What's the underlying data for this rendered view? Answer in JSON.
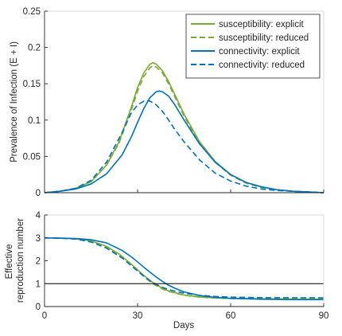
{
  "colors": {
    "susceptibility": "#77AC30",
    "connectivity": "#0072BD",
    "threshold": "#000000",
    "axis": "#262626",
    "box": "#d9d9d9"
  },
  "chart_data": [
    {
      "type": "line",
      "title": "",
      "xlabel": "",
      "ylabel": "Prevalence of Infection (E + I)",
      "xlim": [
        0,
        90
      ],
      "ylim": [
        0,
        0.25
      ],
      "xticks": [
        0,
        30,
        60,
        90
      ],
      "yticks": [
        "0",
        "0.05",
        "0.1",
        "0.15",
        "0.2",
        "0.25"
      ],
      "grid": false,
      "legend_position": "top-right",
      "series": [
        {
          "name": "susceptibility: explicit",
          "color": "#77AC30",
          "dash": "solid",
          "x": [
            0,
            5,
            10,
            15,
            20,
            24,
            28,
            30,
            32,
            34,
            35,
            36,
            38,
            40,
            42,
            45,
            50,
            55,
            60,
            65,
            70,
            75,
            80,
            85,
            90
          ],
          "y": [
            0,
            0.002,
            0.006,
            0.015,
            0.038,
            0.07,
            0.118,
            0.145,
            0.165,
            0.177,
            0.179,
            0.177,
            0.168,
            0.153,
            0.135,
            0.108,
            0.07,
            0.043,
            0.025,
            0.014,
            0.008,
            0.004,
            0.002,
            0.001,
            0
          ]
        },
        {
          "name": "susceptibility: reduced",
          "color": "#77AC30",
          "dash": "dashed",
          "x": [
            0,
            5,
            10,
            15,
            20,
            24,
            28,
            30,
            32,
            34,
            35,
            36,
            38,
            40,
            42,
            45,
            50,
            55,
            60,
            65,
            70,
            75,
            80,
            85,
            90
          ],
          "y": [
            0,
            0.002,
            0.006,
            0.015,
            0.038,
            0.068,
            0.114,
            0.14,
            0.16,
            0.172,
            0.175,
            0.173,
            0.165,
            0.15,
            0.132,
            0.105,
            0.068,
            0.042,
            0.024,
            0.013,
            0.007,
            0.004,
            0.002,
            0.001,
            0
          ]
        },
        {
          "name": "connectivity: explicit",
          "color": "#0072BD",
          "dash": "solid",
          "x": [
            0,
            5,
            10,
            15,
            20,
            25,
            28,
            30,
            32,
            34,
            36,
            37,
            38,
            40,
            42,
            45,
            50,
            55,
            60,
            65,
            70,
            75,
            80,
            85,
            90
          ],
          "y": [
            0,
            0.002,
            0.005,
            0.012,
            0.026,
            0.052,
            0.077,
            0.097,
            0.116,
            0.131,
            0.139,
            0.14,
            0.139,
            0.133,
            0.121,
            0.1,
            0.067,
            0.042,
            0.025,
            0.014,
            0.008,
            0.004,
            0.002,
            0.001,
            0
          ]
        },
        {
          "name": "connectivity: reduced",
          "color": "#0072BD",
          "dash": "dashed",
          "x": [
            0,
            5,
            10,
            15,
            20,
            25,
            28,
            30,
            32,
            33,
            34,
            36,
            38,
            40,
            42,
            45,
            50,
            55,
            60,
            65,
            70,
            75,
            80,
            85,
            90
          ],
          "y": [
            0,
            0.002,
            0.006,
            0.017,
            0.042,
            0.083,
            0.11,
            0.121,
            0.126,
            0.127,
            0.126,
            0.121,
            0.112,
            0.1,
            0.087,
            0.07,
            0.045,
            0.027,
            0.016,
            0.009,
            0.005,
            0.003,
            0.002,
            0.001,
            0
          ]
        }
      ]
    },
    {
      "type": "line",
      "title": "",
      "xlabel": "Days",
      "ylabel": "Effective reproduction number",
      "ylabel_lines": [
        "Effective",
        "reproduction number"
      ],
      "xlim": [
        0,
        90
      ],
      "ylim": [
        0,
        4
      ],
      "xticks": [
        0,
        30,
        60,
        90
      ],
      "yticks": [
        0,
        1,
        2,
        3,
        4
      ],
      "grid": false,
      "reference_line": {
        "y": 1,
        "color": "#000000"
      },
      "series": [
        {
          "color": "#77AC30",
          "dash": "solid",
          "x": [
            0,
            5,
            10,
            15,
            20,
            24,
            28,
            30,
            32,
            34,
            36,
            38,
            40,
            45,
            50,
            55,
            60,
            70,
            80,
            90
          ],
          "y": [
            3.0,
            2.99,
            2.96,
            2.87,
            2.63,
            2.3,
            1.85,
            1.6,
            1.36,
            1.14,
            0.95,
            0.8,
            0.68,
            0.5,
            0.42,
            0.38,
            0.36,
            0.34,
            0.33,
            0.33
          ]
        },
        {
          "color": "#77AC30",
          "dash": "dashed",
          "x": [
            0,
            5,
            10,
            15,
            20,
            24,
            28,
            30,
            32,
            34,
            36,
            38,
            40,
            45,
            50,
            55,
            60,
            70,
            80,
            90
          ],
          "y": [
            3.0,
            2.98,
            2.95,
            2.85,
            2.6,
            2.26,
            1.8,
            1.55,
            1.31,
            1.09,
            0.91,
            0.77,
            0.66,
            0.49,
            0.41,
            0.37,
            0.35,
            0.33,
            0.32,
            0.32
          ]
        },
        {
          "color": "#0072BD",
          "dash": "solid",
          "x": [
            0,
            5,
            10,
            15,
            20,
            25,
            28,
            30,
            32,
            34,
            36,
            38,
            40,
            42,
            45,
            50,
            55,
            60,
            70,
            80,
            90
          ],
          "y": [
            3.0,
            2.99,
            2.97,
            2.92,
            2.78,
            2.45,
            2.17,
            1.95,
            1.72,
            1.5,
            1.29,
            1.1,
            0.93,
            0.8,
            0.64,
            0.48,
            0.4,
            0.36,
            0.32,
            0.3,
            0.3
          ]
        },
        {
          "color": "#0072BD",
          "dash": "dashed",
          "x": [
            0,
            5,
            10,
            15,
            20,
            25,
            28,
            30,
            32,
            34,
            36,
            38,
            40,
            45,
            50,
            55,
            60,
            70,
            80,
            90
          ],
          "y": [
            3.0,
            2.99,
            2.95,
            2.82,
            2.55,
            2.12,
            1.78,
            1.55,
            1.33,
            1.13,
            0.97,
            0.84,
            0.74,
            0.58,
            0.49,
            0.44,
            0.41,
            0.39,
            0.38,
            0.38
          ]
        }
      ]
    }
  ]
}
